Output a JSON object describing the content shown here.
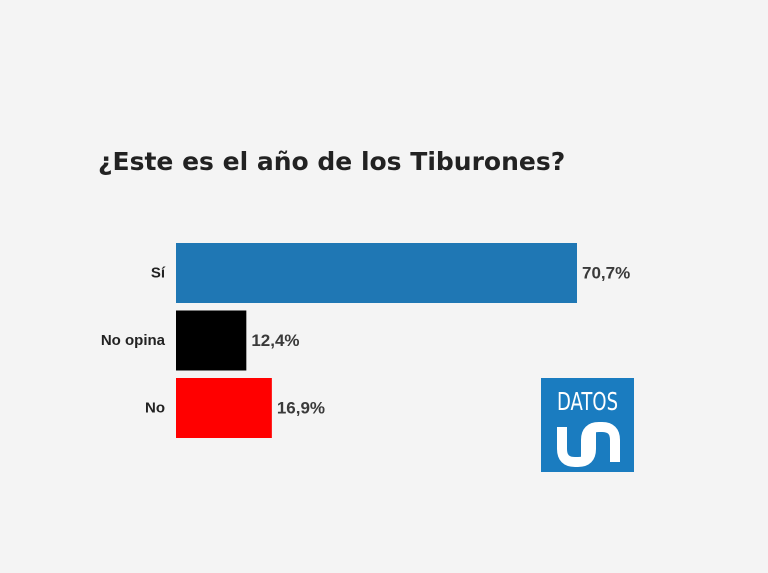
{
  "chart_data": {
    "type": "bar",
    "orientation": "horizontal",
    "title": "¿Este es el año de los Tiburones?",
    "categories": [
      "Sí",
      "No opina",
      "No"
    ],
    "values": [
      70.7,
      12.4,
      16.9
    ],
    "value_labels": [
      "70,7%",
      "12,4%",
      "16,9%"
    ],
    "colors": [
      "#1f77b4",
      "#000000",
      "#ff0000"
    ],
    "xlabel": "",
    "ylabel": "",
    "grid": false,
    "legend": "none"
  },
  "brand": {
    "word": "DATOS",
    "mark": "UN",
    "color": "#1a7cc0",
    "icon": "datos-un-logo"
  }
}
